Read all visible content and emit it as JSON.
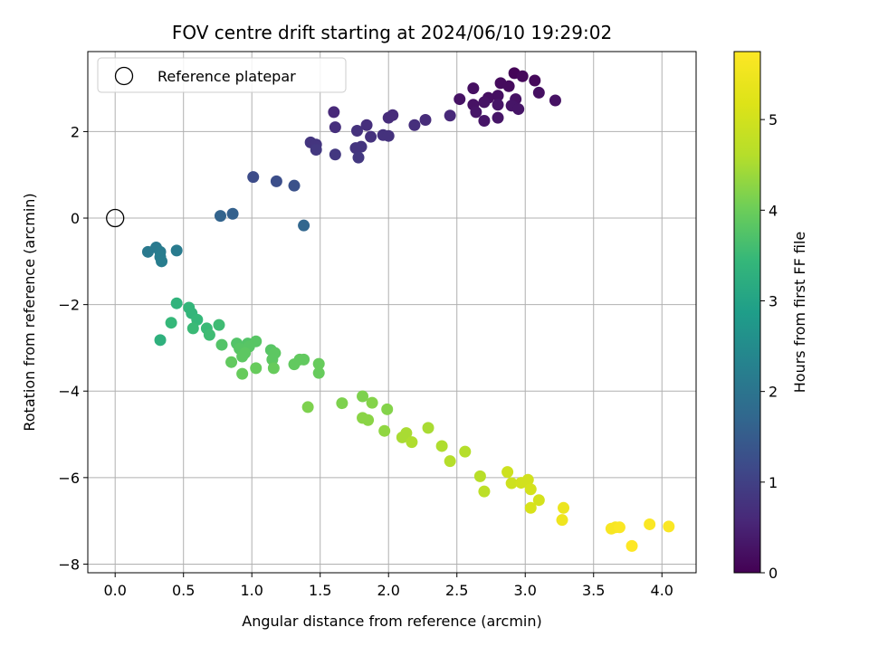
{
  "chart_data": {
    "type": "scatter",
    "title": "FOV centre drift starting at 2024/06/10 19:29:02",
    "xlabel": "Angular distance from reference (arcmin)",
    "ylabel": "Rotation from reference (arcmin)",
    "xlim": [
      -0.2,
      4.25
    ],
    "ylim": [
      -8.2,
      3.85
    ],
    "xticks": [
      0.0,
      0.5,
      1.0,
      1.5,
      2.0,
      2.5,
      3.0,
      3.5,
      4.0
    ],
    "xtick_labels": [
      "0.0",
      "0.5",
      "1.0",
      "1.5",
      "2.0",
      "2.5",
      "3.0",
      "3.5",
      "4.0"
    ],
    "yticks": [
      -8,
      -6,
      -4,
      -2,
      0,
      2
    ],
    "ytick_labels": [
      "−8",
      "−6",
      "−4",
      "−2",
      "0",
      "2"
    ],
    "grid": true,
    "legend": {
      "label": "Reference platepar",
      "position": "upper-left",
      "marker": "open-circle"
    },
    "reference_point": {
      "x": 0.0,
      "y": 0.0
    },
    "colorbar": {
      "label": "Hours from first FF file",
      "colormap": "viridis",
      "range": [
        0,
        5.75
      ],
      "ticks": [
        0,
        1,
        2,
        3,
        4,
        5
      ],
      "tick_labels": [
        "0",
        "1",
        "2",
        "3",
        "4",
        "5"
      ]
    },
    "points": [
      {
        "x": 2.92,
        "y": 3.35,
        "c": 0.05
      },
      {
        "x": 2.98,
        "y": 3.28,
        "c": 0.1
      },
      {
        "x": 3.07,
        "y": 3.18,
        "c": 0.1
      },
      {
        "x": 2.82,
        "y": 3.12,
        "c": 0.15
      },
      {
        "x": 2.88,
        "y": 3.05,
        "c": 0.15
      },
      {
        "x": 2.62,
        "y": 3.0,
        "c": 0.2
      },
      {
        "x": 3.1,
        "y": 2.9,
        "c": 0.2
      },
      {
        "x": 2.8,
        "y": 2.83,
        "c": 0.2
      },
      {
        "x": 2.73,
        "y": 2.78,
        "c": 0.2
      },
      {
        "x": 2.52,
        "y": 2.75,
        "c": 0.25
      },
      {
        "x": 2.93,
        "y": 2.75,
        "c": 0.25
      },
      {
        "x": 3.22,
        "y": 2.72,
        "c": 0.25
      },
      {
        "x": 2.7,
        "y": 2.68,
        "c": 0.25
      },
      {
        "x": 2.62,
        "y": 2.62,
        "c": 0.25
      },
      {
        "x": 2.8,
        "y": 2.62,
        "c": 0.3
      },
      {
        "x": 2.9,
        "y": 2.6,
        "c": 0.3
      },
      {
        "x": 2.95,
        "y": 2.52,
        "c": 0.3
      },
      {
        "x": 2.64,
        "y": 2.45,
        "c": 0.3
      },
      {
        "x": 2.8,
        "y": 2.32,
        "c": 0.3
      },
      {
        "x": 2.7,
        "y": 2.25,
        "c": 0.3
      },
      {
        "x": 1.6,
        "y": 2.45,
        "c": 0.6
      },
      {
        "x": 2.45,
        "y": 2.37,
        "c": 0.6
      },
      {
        "x": 2.03,
        "y": 2.38,
        "c": 0.65
      },
      {
        "x": 2.0,
        "y": 2.32,
        "c": 0.65
      },
      {
        "x": 2.27,
        "y": 2.27,
        "c": 0.65
      },
      {
        "x": 2.19,
        "y": 2.15,
        "c": 0.7
      },
      {
        "x": 1.84,
        "y": 2.15,
        "c": 0.7
      },
      {
        "x": 1.61,
        "y": 2.1,
        "c": 0.7
      },
      {
        "x": 1.77,
        "y": 2.02,
        "c": 0.75
      },
      {
        "x": 1.96,
        "y": 1.92,
        "c": 0.75
      },
      {
        "x": 2.0,
        "y": 1.9,
        "c": 0.75
      },
      {
        "x": 1.87,
        "y": 1.88,
        "c": 0.75
      },
      {
        "x": 1.43,
        "y": 1.75,
        "c": 0.8
      },
      {
        "x": 1.47,
        "y": 1.7,
        "c": 0.8
      },
      {
        "x": 1.8,
        "y": 1.65,
        "c": 0.8
      },
      {
        "x": 1.76,
        "y": 1.62,
        "c": 0.8
      },
      {
        "x": 1.47,
        "y": 1.58,
        "c": 0.85
      },
      {
        "x": 1.61,
        "y": 1.47,
        "c": 0.85
      },
      {
        "x": 1.78,
        "y": 1.4,
        "c": 0.85
      },
      {
        "x": 1.01,
        "y": 0.95,
        "c": 1.2
      },
      {
        "x": 1.18,
        "y": 0.85,
        "c": 1.25
      },
      {
        "x": 1.31,
        "y": 0.75,
        "c": 1.3
      },
      {
        "x": 0.86,
        "y": 0.1,
        "c": 1.6
      },
      {
        "x": 0.77,
        "y": 0.05,
        "c": 1.65
      },
      {
        "x": 1.38,
        "y": -0.17,
        "c": 1.7
      },
      {
        "x": 0.24,
        "y": -0.78,
        "c": 2.1
      },
      {
        "x": 0.3,
        "y": -0.68,
        "c": 2.1
      },
      {
        "x": 0.33,
        "y": -0.78,
        "c": 2.15
      },
      {
        "x": 0.45,
        "y": -0.75,
        "c": 2.15
      },
      {
        "x": 0.33,
        "y": -0.9,
        "c": 2.2
      },
      {
        "x": 0.34,
        "y": -1.0,
        "c": 2.2
      },
      {
        "x": 0.33,
        "y": -2.82,
        "c": 3.3
      },
      {
        "x": 0.45,
        "y": -1.97,
        "c": 3.35
      },
      {
        "x": 0.54,
        "y": -2.07,
        "c": 3.4
      },
      {
        "x": 0.56,
        "y": -2.2,
        "c": 3.4
      },
      {
        "x": 0.6,
        "y": -2.35,
        "c": 3.45
      },
      {
        "x": 0.41,
        "y": -2.42,
        "c": 3.45
      },
      {
        "x": 0.57,
        "y": -2.55,
        "c": 3.5
      },
      {
        "x": 0.67,
        "y": -2.55,
        "c": 3.5
      },
      {
        "x": 0.69,
        "y": -2.7,
        "c": 3.55
      },
      {
        "x": 0.76,
        "y": -2.47,
        "c": 3.55
      },
      {
        "x": 0.78,
        "y": -2.93,
        "c": 3.75
      },
      {
        "x": 0.89,
        "y": -2.9,
        "c": 3.75
      },
      {
        "x": 0.97,
        "y": -2.9,
        "c": 3.75
      },
      {
        "x": 1.03,
        "y": -2.85,
        "c": 3.8
      },
      {
        "x": 0.98,
        "y": -2.97,
        "c": 3.8
      },
      {
        "x": 0.91,
        "y": -3.02,
        "c": 3.8
      },
      {
        "x": 1.14,
        "y": -3.05,
        "c": 3.8
      },
      {
        "x": 0.95,
        "y": -3.12,
        "c": 3.85
      },
      {
        "x": 1.17,
        "y": -3.12,
        "c": 3.85
      },
      {
        "x": 0.93,
        "y": -3.2,
        "c": 3.85
      },
      {
        "x": 1.15,
        "y": -3.27,
        "c": 3.85
      },
      {
        "x": 1.35,
        "y": -3.27,
        "c": 3.9
      },
      {
        "x": 1.38,
        "y": -3.27,
        "c": 3.9
      },
      {
        "x": 0.85,
        "y": -3.33,
        "c": 3.9
      },
      {
        "x": 1.31,
        "y": -3.38,
        "c": 3.9
      },
      {
        "x": 1.49,
        "y": -3.37,
        "c": 3.95
      },
      {
        "x": 1.03,
        "y": -3.47,
        "c": 3.95
      },
      {
        "x": 1.16,
        "y": -3.47,
        "c": 3.95
      },
      {
        "x": 1.49,
        "y": -3.58,
        "c": 3.95
      },
      {
        "x": 0.93,
        "y": -3.6,
        "c": 3.95
      },
      {
        "x": 1.41,
        "y": -4.37,
        "c": 4.15
      },
      {
        "x": 1.66,
        "y": -4.28,
        "c": 4.15
      },
      {
        "x": 1.81,
        "y": -4.12,
        "c": 4.15
      },
      {
        "x": 1.88,
        "y": -4.27,
        "c": 4.2
      },
      {
        "x": 1.99,
        "y": -4.42,
        "c": 4.2
      },
      {
        "x": 1.81,
        "y": -4.62,
        "c": 4.25
      },
      {
        "x": 1.85,
        "y": -4.67,
        "c": 4.25
      },
      {
        "x": 1.97,
        "y": -4.92,
        "c": 4.3
      },
      {
        "x": 2.13,
        "y": -4.97,
        "c": 4.5
      },
      {
        "x": 2.1,
        "y": -5.07,
        "c": 4.5
      },
      {
        "x": 2.29,
        "y": -4.85,
        "c": 4.5
      },
      {
        "x": 2.17,
        "y": -5.18,
        "c": 4.55
      },
      {
        "x": 2.39,
        "y": -5.27,
        "c": 4.55
      },
      {
        "x": 2.56,
        "y": -5.4,
        "c": 4.6
      },
      {
        "x": 2.45,
        "y": -5.62,
        "c": 4.6
      },
      {
        "x": 2.67,
        "y": -5.97,
        "c": 4.65
      },
      {
        "x": 2.7,
        "y": -6.32,
        "c": 4.7
      },
      {
        "x": 2.87,
        "y": -5.87,
        "c": 4.95
      },
      {
        "x": 2.9,
        "y": -6.13,
        "c": 4.95
      },
      {
        "x": 3.02,
        "y": -6.05,
        "c": 5.0
      },
      {
        "x": 2.97,
        "y": -6.12,
        "c": 5.0
      },
      {
        "x": 3.04,
        "y": -6.27,
        "c": 5.05
      },
      {
        "x": 3.1,
        "y": -6.52,
        "c": 5.05
      },
      {
        "x": 3.04,
        "y": -6.7,
        "c": 5.1
      },
      {
        "x": 3.28,
        "y": -6.7,
        "c": 5.45
      },
      {
        "x": 3.27,
        "y": -6.98,
        "c": 5.5
      },
      {
        "x": 3.63,
        "y": -7.18,
        "c": 5.65
      },
      {
        "x": 3.66,
        "y": -7.15,
        "c": 5.65
      },
      {
        "x": 3.69,
        "y": -7.15,
        "c": 5.7
      },
      {
        "x": 3.91,
        "y": -7.08,
        "c": 5.7
      },
      {
        "x": 4.05,
        "y": -7.13,
        "c": 5.7
      },
      {
        "x": 3.78,
        "y": -7.58,
        "c": 5.75
      }
    ]
  }
}
